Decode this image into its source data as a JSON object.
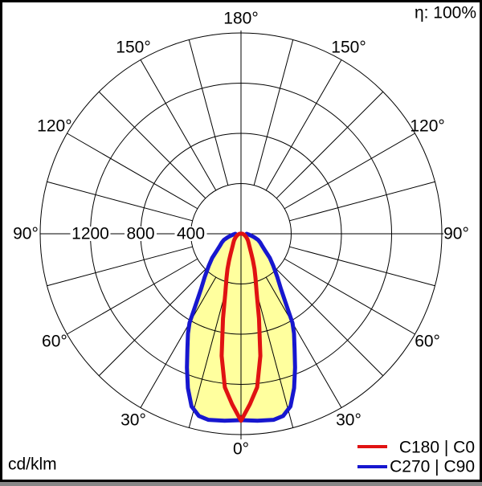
{
  "header": {
    "efficiency_label": "η: 100%"
  },
  "footer": {
    "unit_label": "cd/klm"
  },
  "legend": {
    "position": "bottom-right",
    "items": [
      {
        "label": "C180 | C0",
        "color": "#e01212"
      },
      {
        "label": "C270 | C90",
        "color": "#1717cf"
      }
    ]
  },
  "chart_data": {
    "type": "line",
    "variant": "polar-photometric-intensity-distribution",
    "units": "cd/klm",
    "efficiency_text": "η: 100%",
    "fill_color": "#ffff9e",
    "legend_position": "bottom-right",
    "grid": {
      "angle_step_deg": 15,
      "angle_label_step_deg": 30,
      "ring_step": 400,
      "rings": [
        400,
        800,
        1200,
        1600
      ],
      "ring_axis_labels": [
        "1200",
        "800",
        "400"
      ],
      "rmax": 1600
    },
    "angle_labels": [
      "0°",
      "30°",
      "60°",
      "90°",
      "120°",
      "150°",
      "180°"
    ],
    "angle_label_values_deg": [
      0,
      30,
      60,
      90,
      120,
      150,
      180
    ],
    "series": [
      {
        "name": "C180 | C0",
        "color": "#e01212",
        "symmetric_mirror": true,
        "gamma_deg": [
          0,
          3,
          6,
          9,
          12,
          15,
          18,
          21,
          24,
          27,
          30,
          35,
          40,
          45,
          50,
          55,
          60,
          65,
          70,
          75,
          80,
          85,
          90,
          95
        ],
        "intensity_cd_per_klm": [
          1490,
          1360,
          1230,
          985,
          690,
          480,
          375,
          300,
          235,
          185,
          150,
          115,
          95,
          80,
          66,
          54,
          44,
          36,
          29,
          23,
          18,
          14,
          11,
          8
        ]
      },
      {
        "name": "C270 | C90",
        "color": "#1717cf",
        "symmetric_mirror": true,
        "filled": true,
        "gamma_deg": [
          0,
          5,
          10,
          13,
          16,
          19,
          22,
          25,
          28,
          30,
          33,
          36,
          40,
          45,
          50,
          55,
          60,
          65,
          70,
          75,
          80,
          85,
          90
        ],
        "intensity_cd_per_klm": [
          1485,
          1495,
          1505,
          1490,
          1430,
          1300,
          1150,
          1010,
          900,
          820,
          650,
          540,
          450,
          365,
          300,
          235,
          195,
          170,
          145,
          110,
          80,
          60,
          45
        ]
      }
    ]
  }
}
